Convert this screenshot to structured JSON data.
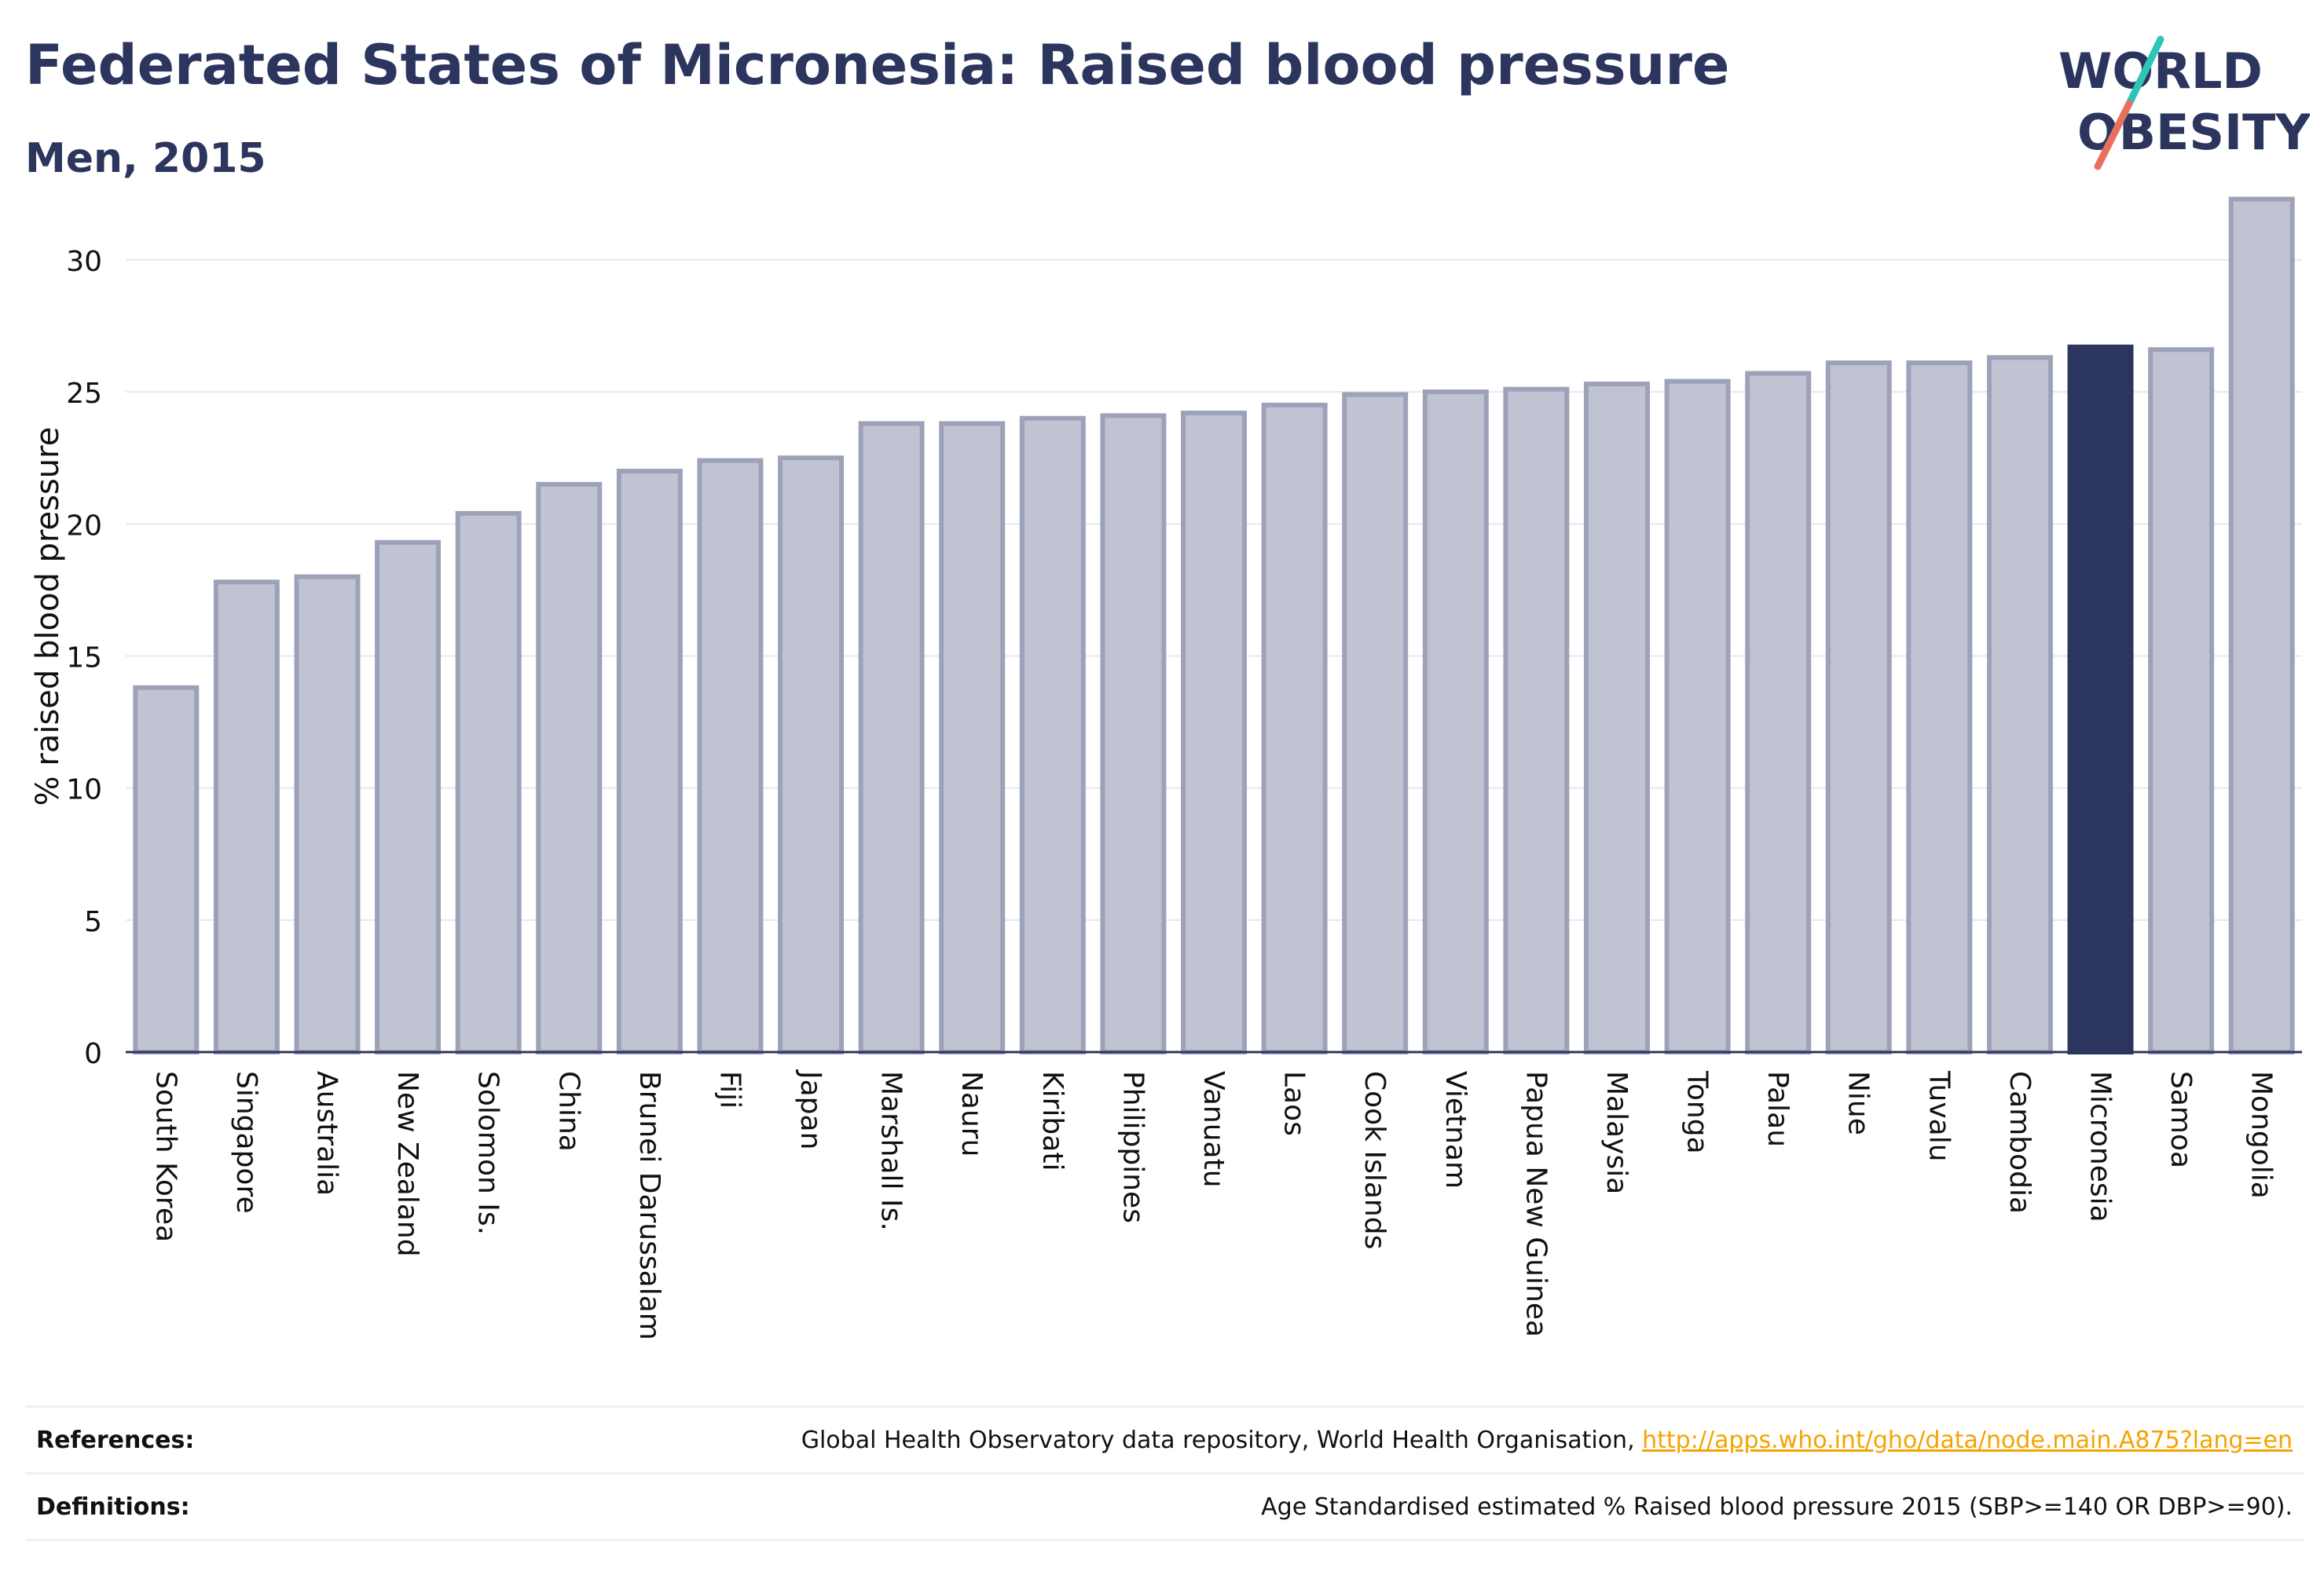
{
  "header": {
    "title": "Federated States of Micronesia: Raised blood pressure",
    "subtitle": "Men, 2015"
  },
  "logo": {
    "line1": "WORLD",
    "line2": "OBESITY",
    "accent_teal": "#2ec4b6",
    "accent_coral": "#e8705f"
  },
  "chart_data": {
    "type": "bar",
    "ylabel": "% raised blood pressure",
    "xlabel": "",
    "ylim": [
      0,
      33
    ],
    "yticks": [
      0,
      5,
      10,
      15,
      20,
      25,
      30
    ],
    "grid": true,
    "highlight": "Micronesia",
    "colors": {
      "bar": "#c0c3d1",
      "bar_edge": "#9ea2b9",
      "highlight": "#2c355e"
    },
    "categories": [
      "South Korea",
      "Singapore",
      "Australia",
      "New Zealand",
      "Solomon Is.",
      "China",
      "Brunei Darussalam",
      "Fiji",
      "Japan",
      "Marshall Is.",
      "Nauru",
      "Kiribati",
      "Philippines",
      "Vanuatu",
      "Laos",
      "Cook Islands",
      "Vietnam",
      "Papua New Guinea",
      "Malaysia",
      "Tonga",
      "Palau",
      "Niue",
      "Tuvalu",
      "Cambodia",
      "Micronesia",
      "Samoa",
      "Mongolia"
    ],
    "values": [
      13.8,
      17.8,
      18.0,
      19.3,
      20.4,
      21.5,
      22.0,
      22.4,
      22.5,
      23.8,
      23.8,
      24.0,
      24.1,
      24.2,
      24.5,
      24.9,
      25.0,
      25.1,
      25.3,
      25.4,
      25.7,
      26.1,
      26.1,
      26.3,
      26.7,
      26.6,
      32.3
    ]
  },
  "references": {
    "label": "References:",
    "text": "Global Health Observatory data repository, World Health Organisation, ",
    "link": "http://apps.who.int/gho/data/node.main.A875?lang=en"
  },
  "definitions": {
    "label": "Definitions:",
    "text": "Age Standardised estimated % Raised blood pressure 2015 (SBP>=140 OR DBP>=90)."
  }
}
